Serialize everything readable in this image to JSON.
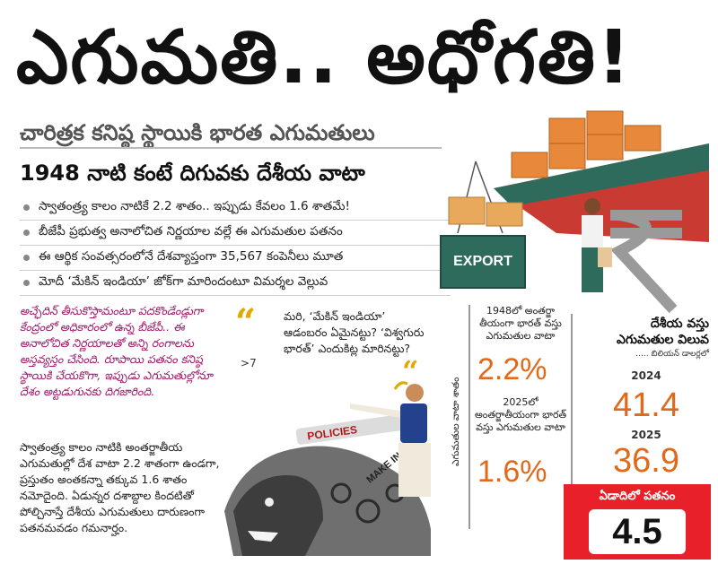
{
  "headline": "ఎగుమతి.. అధోగతి!",
  "subhead1": "చారిత్రక కనిష్ఠ స్థాయికి భారత ఎగుమతులు",
  "subhead2": "1948 నాటి కంటే దిగువకు దేశీయ వాటా",
  "bullets": [
    "స్వాతంత్ర్య కాలం నాటికే 2.2 శాతం.. ఇప్పుడు కేవలం 1.6 శాతమే!",
    "బీజేపీ ప్రభుత్వ అనాలోచిత నిర్ణయాల వల్లే ఈ ఎగుమతుల పతనం",
    "ఈ ఆర్థిక సంవత్సరంలోనే దేశవ్యాప్తంగా 35,567 కంపెనీలు మూత",
    "మోదీ ‘మేకిన్ ఇండియా’ జోక్‌గా మారిందంటూ విమర్శల వెల్లువ"
  ],
  "magenta_text": "అచ్ఛేదిన్ తీసుకొస్తామంటూ పదకొండేండ్లుగా కేంద్రంలో అధికారంలో ఉన్న బీజేపీ.. ఈ అనాలోచిత నిర్ణయాలతో అన్ని రంగాలను అస్తవ్యస్తం చేసింది. రూపాయి పతనం కనిష్ఠ స్థాయికి చేయకొగా, ఇప్పుడు ఎగుమతుల్లోనూ దేశం అట్టడుగునకు దిగజారింది.",
  "page_ref": "7",
  "body_text": "స్వాతంత్ర్య కాలం నాటికి అంతర్జాతీయ ఎగుమతుల్లో దేశ వాటా 2.2 శాతంగా ఉండగా, ప్రస్తుతం అంతకన్నా తక్కువ 1.6 శాతం నమోదైంది. ఏడున్నర దశాబ్దాల కిందటితో పోల్చినాస్తే దేశీయ ఎగుమతులు దారుణంగా పతనమవడం గమనార్హం.",
  "quote_marks": [
    "“",
    "“"
  ],
  "quote_text": "మరి, ‘మేకిన్ ఇండియా’ ఆడంబరం ఏమైనట్టు? ‘విశ్వగురు భారత్’ ఎందుకిట్ల మారినట్టు?",
  "illustration": {
    "policies_label": "POLICIES",
    "makeinindia_label": "MAKE IN INDIA",
    "export_label": "EXPORT"
  },
  "infographic": {
    "vertical_label": "ఎగుమతుల వాటా శాతం",
    "share_1948_caption": "1948లో అంతర్జా తీయంగా భారత్ వస్తు ఎగుమతుల వాటా",
    "share_1948_value": "2.2%",
    "share_2025_caption": "2025లో అంతర్జాతీయంగా భారత్ వస్తు ఎగుమతుల వాటా",
    "share_2025_value": "1.6%",
    "domestic_title": "దేశీయ వస్తు ఎగుమతుల విలువ",
    "domestic_unit": "….. బిలియన్ డాలర్లలో",
    "year_2024": "2024",
    "value_2024": "41.4",
    "year_2025": "2025",
    "value_2025": "36.9",
    "decline_label": "ఏడాదిలో పతనం",
    "decline_value": "4.5"
  },
  "colors": {
    "accent_orange": "#e06a1a",
    "decline_red": "#e8202a",
    "magenta": "#a1186b",
    "quote_yellow": "#e0a800"
  }
}
